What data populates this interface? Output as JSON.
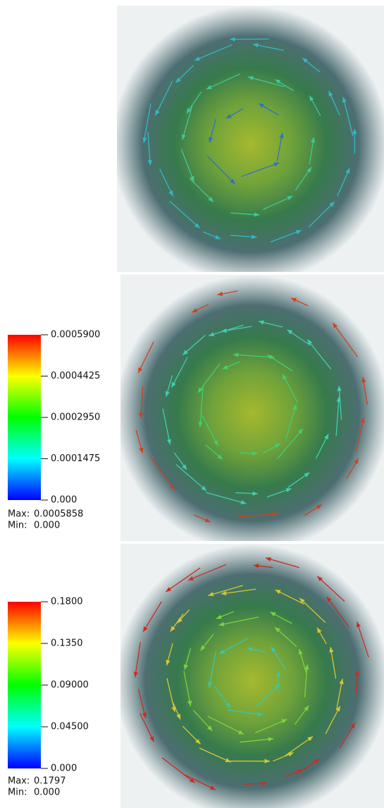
{
  "panels": [
    {
      "colorbar": null
    },
    {
      "colorbar": {
        "ticks": [
          "0.0005900",
          "0.0004425",
          "0.0002950",
          "0.0001475",
          "0.000"
        ],
        "max_label": "Max:",
        "max": "0.0005858",
        "min_label": "Min:",
        "min": "0.000"
      }
    },
    {
      "colorbar": {
        "ticks": [
          "0.1800",
          "0.1350",
          "0.09000",
          "0.04500",
          "0.000"
        ],
        "max_label": "Max:",
        "max": "0.1797",
        "min_label": "Min:",
        "min": "0.000"
      }
    }
  ]
}
